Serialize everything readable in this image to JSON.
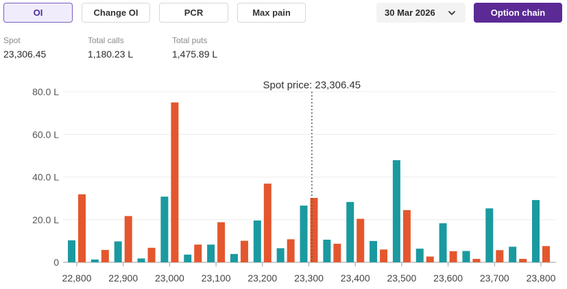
{
  "tabs": [
    {
      "label": "OI",
      "active": true
    },
    {
      "label": "Change OI",
      "active": false
    },
    {
      "label": "PCR",
      "active": false
    },
    {
      "label": "Max pain",
      "active": false
    }
  ],
  "expiry": {
    "selected": "30 Mar 2026",
    "icon": "chevron-down-icon"
  },
  "option_chain_label": "Option chain",
  "summary": {
    "spot_label": "Spot",
    "spot_value": "23,306.45",
    "calls_label": "Total calls",
    "calls_value": "1,180.23 L",
    "puts_label": "Total puts",
    "puts_value": "1,475.89 L"
  },
  "colors": {
    "calls": "#1a9aa0",
    "puts": "#e4572e",
    "accent": "#5b2a95"
  },
  "chart_data": {
    "type": "bar",
    "spot_annotation": "Spot price: 23,306.45",
    "spot_x": 23306.45,
    "x": [
      22800,
      22850,
      22900,
      22950,
      23000,
      23050,
      23100,
      23150,
      23200,
      23250,
      23300,
      23350,
      23400,
      23450,
      23500,
      23550,
      23600,
      23650,
      23700,
      23750,
      23800
    ],
    "x_ticks": [
      "22,800",
      "22,900",
      "23,000",
      "23,100",
      "23,200",
      "23,300",
      "23,400",
      "23,500",
      "23,600",
      "23,700",
      "23,800"
    ],
    "y_ticks": [
      "0",
      "20.0 L",
      "40.0 L",
      "60.0 L",
      "80.0 L"
    ],
    "ylim": [
      0,
      80
    ],
    "grid": true,
    "series": [
      {
        "key": "calls",
        "values": [
          10.3,
          1.3,
          9.8,
          1.8,
          30.8,
          3.6,
          8.3,
          3.9,
          19.6,
          6.6,
          26.6,
          10.6,
          28.3,
          10.0,
          47.9,
          6.4,
          18.3,
          5.3,
          25.3,
          7.3,
          29.2
        ]
      },
      {
        "key": "puts",
        "values": [
          31.9,
          5.8,
          21.7,
          6.8,
          75.0,
          8.3,
          18.8,
          10.1,
          36.9,
          10.8,
          30.2,
          8.7,
          20.4,
          6.0,
          24.5,
          2.7,
          5.2,
          1.6,
          5.7,
          1.6,
          7.6
        ]
      }
    ]
  }
}
